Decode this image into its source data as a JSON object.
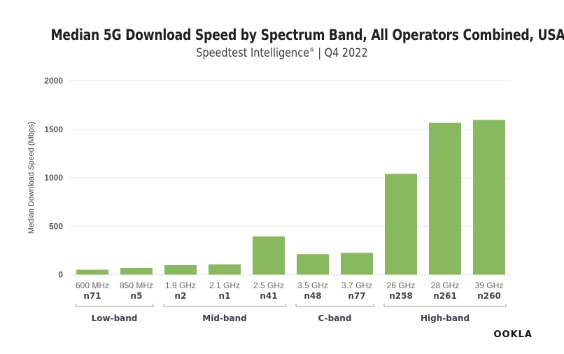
{
  "header": {
    "title": "Median 5G Download Speed by Spectrum Band, All Operators Combined, USA",
    "subtitle_main": "Speedtest Intelligence",
    "subtitle_reg": "®",
    "subtitle_rest": " | Q4 2022"
  },
  "logo": {
    "text": "OOKLA",
    "icon": "ookla-logo"
  },
  "colors": {
    "bar": "#88b860",
    "grid": "#ececec",
    "bracket": "#999999"
  },
  "chart_data": {
    "type": "bar",
    "title": "Median 5G Download Speed by Spectrum Band, All Operators Combined, USA",
    "subtitle": "Speedtest Intelligence® | Q4 2022",
    "xlabel": "",
    "ylabel": "Median Download Speed (Mbps)",
    "ylim": [
      0,
      2000
    ],
    "yticks": [
      0,
      500,
      1000,
      1500,
      2000
    ],
    "grid": true,
    "categories": [
      "600 MHz",
      "850 MHz",
      "1.9 GHz",
      "2.1 GHz",
      "2.5 GHz",
      "3.5 GHz",
      "3.7 GHz",
      "26 GHz",
      "28 GHz",
      "39 GHz"
    ],
    "band_labels": [
      "n71",
      "n5",
      "n2",
      "n1",
      "n41",
      "n48",
      "n77",
      "n258",
      "n261",
      "n260"
    ],
    "values": [
      50,
      69,
      98,
      105,
      394,
      211,
      224,
      1039,
      1566,
      1597
    ],
    "groups": [
      {
        "name": "Low-band",
        "start": 0,
        "end": 1
      },
      {
        "name": "Mid-band",
        "start": 2,
        "end": 4
      },
      {
        "name": "C-band",
        "start": 5,
        "end": 6
      },
      {
        "name": "High-band",
        "start": 7,
        "end": 9
      }
    ]
  }
}
